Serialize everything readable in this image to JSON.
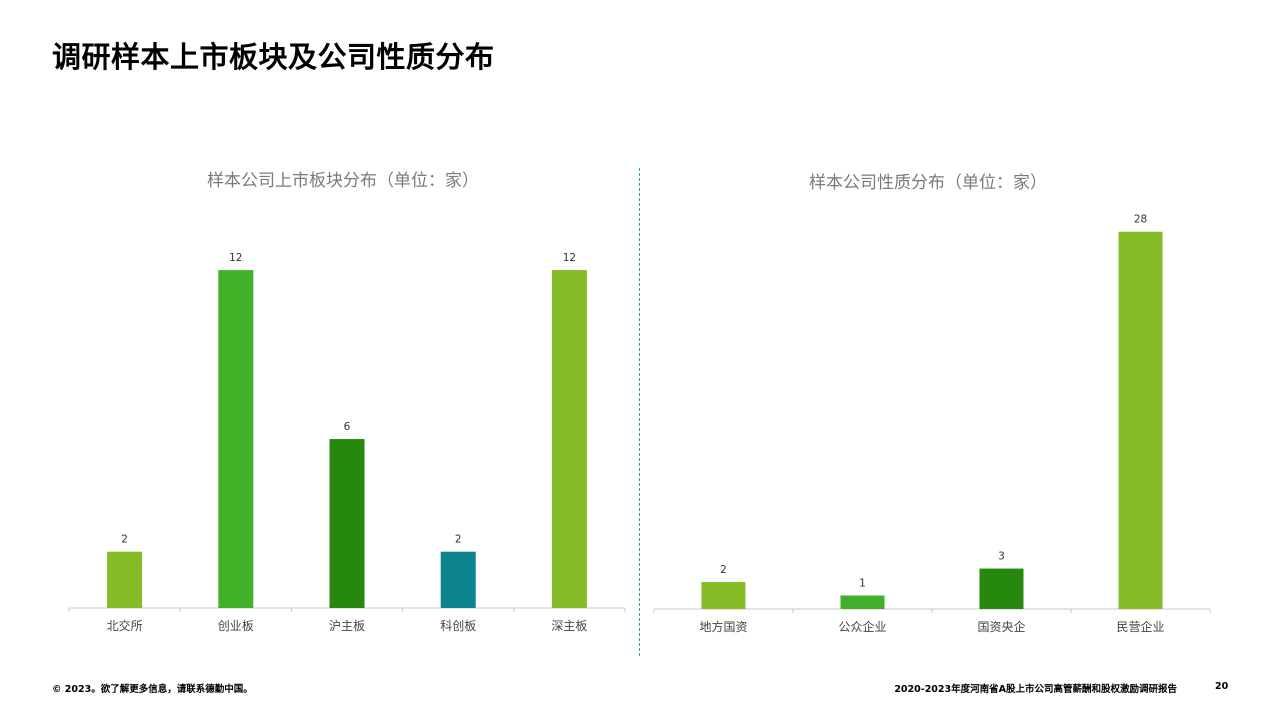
{
  "title": "调研样本上市板块及公司性质分布",
  "chart_data": [
    {
      "type": "bar",
      "title": "样本公司上市板块分布（单位：家）",
      "categories": [
        "北交所",
        "创业板",
        "沪主板",
        "科创板",
        "深主板"
      ],
      "values": [
        2,
        12,
        6,
        2,
        12
      ],
      "colors": [
        "#86bc25",
        "#43b02a",
        "#26890d",
        "#0d8390",
        "#86bc25"
      ],
      "ylim": [
        0,
        12.5
      ],
      "grid": false,
      "legend": "none"
    },
    {
      "type": "bar",
      "title": "样本公司性质分布（单位：家）",
      "categories": [
        "地方国资",
        "公众企业",
        "国资央企",
        "民营企业"
      ],
      "values": [
        2,
        1,
        3,
        28
      ],
      "colors": [
        "#86bc25",
        "#43b02a",
        "#26890d",
        "#86bc25"
      ],
      "ylim": [
        0,
        28.5
      ],
      "grid": false,
      "legend": "none"
    }
  ],
  "footer": {
    "copyright": "© 2023。欲了解更多信息，请联系德勤中国。",
    "report_title": "2020-2023年度河南省A股上市公司高管薪酬和股权激励调研报告",
    "page_number": "20"
  }
}
